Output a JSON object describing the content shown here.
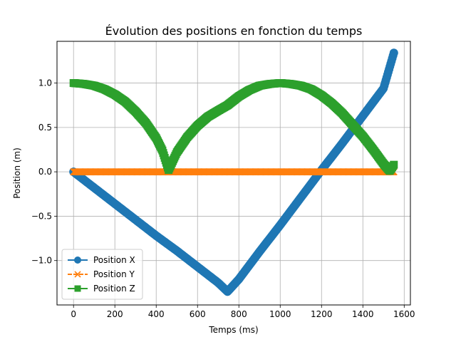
{
  "chart_data": {
    "type": "line",
    "title": "Évolution des positions en fonction du temps",
    "xlabel": "Temps (ms)",
    "ylabel": "Position (m)",
    "xlim": [
      -80,
      1630
    ],
    "ylim": [
      -1.5,
      1.47
    ],
    "xticks": [
      0,
      200,
      400,
      600,
      800,
      1000,
      1200,
      1400,
      1600
    ],
    "xtick_labels": [
      "0",
      "200",
      "400",
      "600",
      "800",
      "1000",
      "1200",
      "1400",
      "1600"
    ],
    "yticks": [
      -1.0,
      -0.5,
      0.0,
      0.5,
      1.0
    ],
    "ytick_labels": [
      "−1.0",
      "−0.5",
      "0.0",
      "0.5",
      "1.0"
    ],
    "grid": true,
    "legend_position": "lower-left",
    "series": [
      {
        "name": "Position X",
        "color": "#1f77b4",
        "marker": "circle",
        "line_style": "solid",
        "x": [
          0,
          100,
          200,
          300,
          400,
          500,
          600,
          700,
          745,
          800,
          900,
          1000,
          1100,
          1200,
          1300,
          1400,
          1500,
          1550
        ],
        "y": [
          0.0,
          -0.18,
          -0.36,
          -0.54,
          -0.72,
          -0.89,
          -1.07,
          -1.25,
          -1.35,
          -1.21,
          -0.9,
          -0.6,
          -0.29,
          0.02,
          0.32,
          0.63,
          0.94,
          1.34
        ]
      },
      {
        "name": "Position Y",
        "color": "#ff7f0e",
        "marker": "x",
        "line_style": "dashed",
        "x": [
          0,
          200,
          400,
          600,
          800,
          1000,
          1200,
          1400,
          1550
        ],
        "y": [
          0,
          0,
          0,
          0,
          0,
          0,
          0,
          0,
          0
        ]
      },
      {
        "name": "Position Z",
        "color": "#2ca02c",
        "marker": "square",
        "line_style": "solid",
        "x": [
          0,
          50,
          100,
          150,
          200,
          250,
          300,
          350,
          400,
          430,
          460,
          500,
          550,
          600,
          650,
          700,
          745,
          800,
          850,
          900,
          950,
          1000,
          1050,
          1100,
          1150,
          1200,
          1250,
          1300,
          1350,
          1400,
          1450,
          1500,
          1530,
          1550
        ],
        "y": [
          1.0,
          0.99,
          0.97,
          0.93,
          0.87,
          0.79,
          0.68,
          0.55,
          0.38,
          0.24,
          0.02,
          0.22,
          0.39,
          0.52,
          0.62,
          0.69,
          0.75,
          0.85,
          0.92,
          0.97,
          0.99,
          1.0,
          0.99,
          0.97,
          0.93,
          0.86,
          0.77,
          0.66,
          0.53,
          0.4,
          0.25,
          0.09,
          0.01,
          0.08
        ]
      }
    ]
  }
}
